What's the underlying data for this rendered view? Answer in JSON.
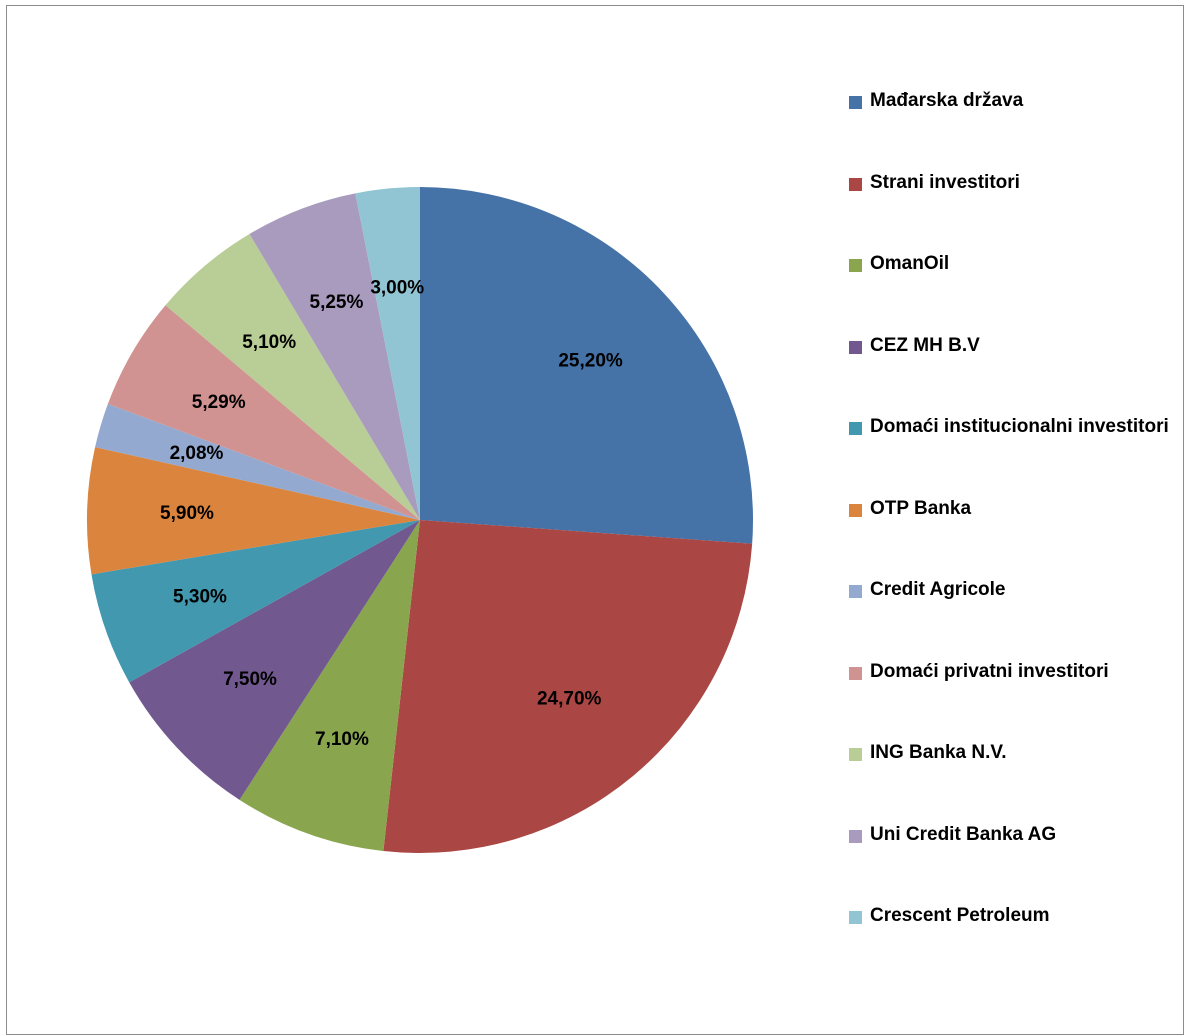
{
  "chart_data": {
    "type": "pie",
    "title": "",
    "slices": [
      {
        "name": "Mađarska država",
        "value": 25.2,
        "label": "25,20%",
        "color": "#4572a7"
      },
      {
        "name": "Strani investitori",
        "value": 24.7,
        "label": "24,70%",
        "color": "#aa4643"
      },
      {
        "name": "OmanOil",
        "value": 7.1,
        "label": "7,10%",
        "color": "#89a54e"
      },
      {
        "name": "CEZ MH B.V",
        "value": 7.5,
        "label": "7,50%",
        "color": "#71588f"
      },
      {
        "name": "Domaći institucionalni investitori",
        "value": 5.3,
        "label": "5,30%",
        "color": "#4198af"
      },
      {
        "name": "OTP Banka",
        "value": 5.9,
        "label": "5,90%",
        "color": "#db843d"
      },
      {
        "name": "Credit Agricole",
        "value": 2.08,
        "label": "2,08%",
        "color": "#93a9cf"
      },
      {
        "name": "Domaći privatni investitori",
        "value": 5.29,
        "label": "5,29%",
        "color": "#d19392"
      },
      {
        "name": "ING Banka N.V.",
        "value": 5.1,
        "label": "5,10%",
        "color": "#b9cd96"
      },
      {
        "name": "Uni Credit Banka AG",
        "value": 5.25,
        "label": "5,25%",
        "color": "#a99bbd"
      },
      {
        "name": "Crescent Petroleum",
        "value": 3.0,
        "label": "3,00%",
        "color": "#92c5d4"
      }
    ],
    "legend_position": "right",
    "data_labels": "inside"
  }
}
